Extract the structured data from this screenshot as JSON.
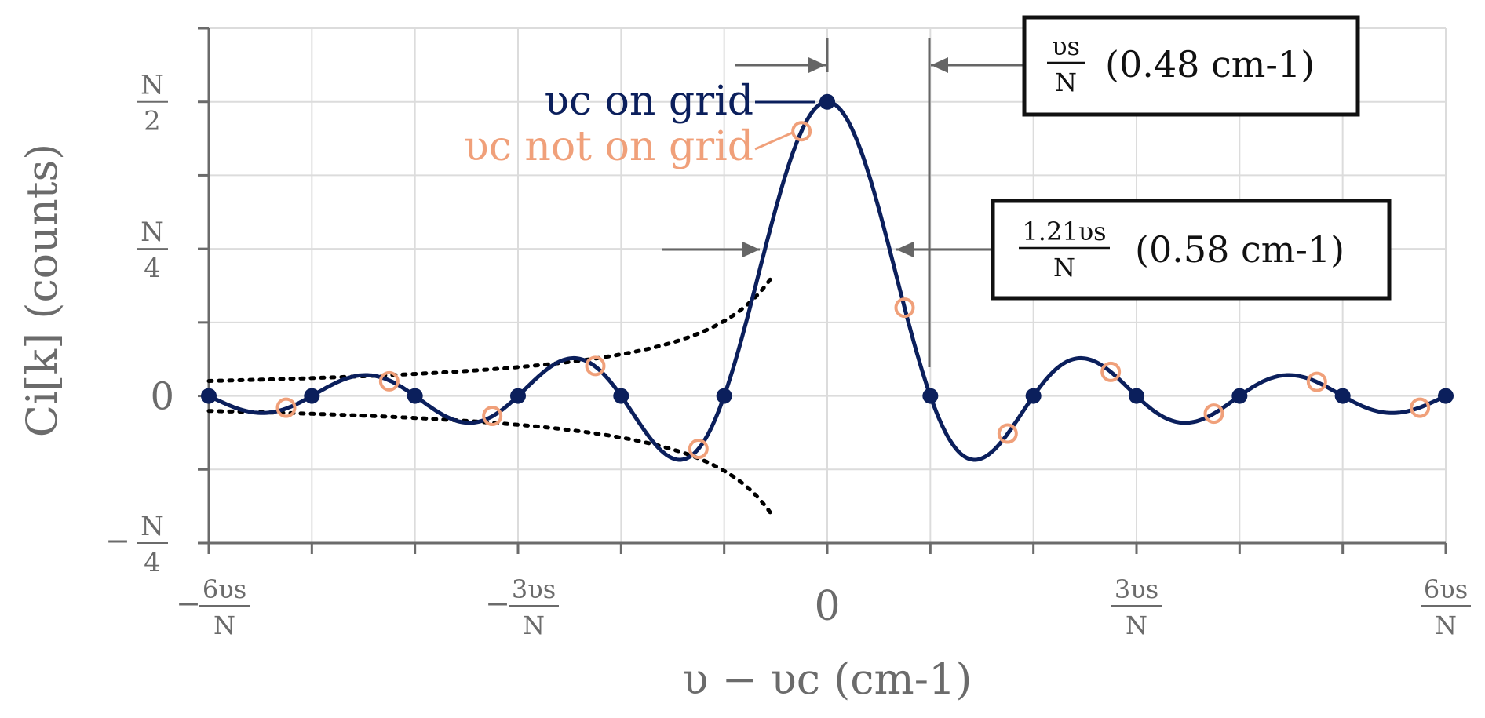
{
  "chart_data": {
    "type": "line",
    "xlabel": "υ − υc (cm-1)",
    "ylabel": "Ci[k] (counts)",
    "x_unit": "υs/N",
    "y_unit": "N",
    "xlim": [
      -6,
      6
    ],
    "ylim": [
      -0.25,
      0.625
    ],
    "grid": true,
    "x_ticks": [
      {
        "value": -6,
        "sign": "−",
        "num": "6υs",
        "den": "N"
      },
      {
        "value": -3,
        "sign": "−",
        "num": "3υs",
        "den": "N"
      },
      {
        "value": 0,
        "text": "0"
      },
      {
        "value": 3,
        "sign": "",
        "num": "3υs",
        "den": "N"
      },
      {
        "value": 6,
        "sign": "",
        "num": "6υs",
        "den": "N"
      }
    ],
    "y_ticks": [
      {
        "value": 0.5,
        "sign": "",
        "num": "N",
        "den": "2"
      },
      {
        "value": 0.25,
        "sign": "",
        "num": "N",
        "den": "4"
      },
      {
        "value": 0,
        "text": "0"
      },
      {
        "value": -0.25,
        "sign": "−",
        "num": "N",
        "den": "4"
      }
    ],
    "series": [
      {
        "name": "υc on grid",
        "color": "#0b1f5c",
        "x": [
          -6,
          -5,
          -4,
          -3,
          -2,
          -1,
          0,
          1,
          2,
          3,
          4,
          5,
          6
        ],
        "y": [
          0,
          0,
          0,
          0,
          0,
          0,
          0.5,
          0,
          0,
          0,
          0,
          0,
          0
        ]
      },
      {
        "name": "υc not on grid",
        "color": "#f0a07a",
        "x": [
          -5.25,
          -4.25,
          -3.25,
          -2.25,
          -1.25,
          -0.25,
          0.75,
          1.75,
          2.75,
          3.75,
          4.75,
          5.75
        ],
        "y": [
          -0.02,
          0.025,
          -0.034,
          0.051,
          -0.09,
          0.45,
          0.15,
          -0.064,
          0.041,
          -0.03,
          0.024,
          -0.02
        ]
      }
    ],
    "envelope": {
      "style": "dotted",
      "color": "#000000"
    },
    "annotations": [
      {
        "label_num": "υs",
        "label_den": "N",
        "label_value": "(0.48 cm-1)"
      },
      {
        "label_num": "1.21υs",
        "label_den": "N",
        "label_value": "(0.58 cm-1)"
      }
    ]
  }
}
